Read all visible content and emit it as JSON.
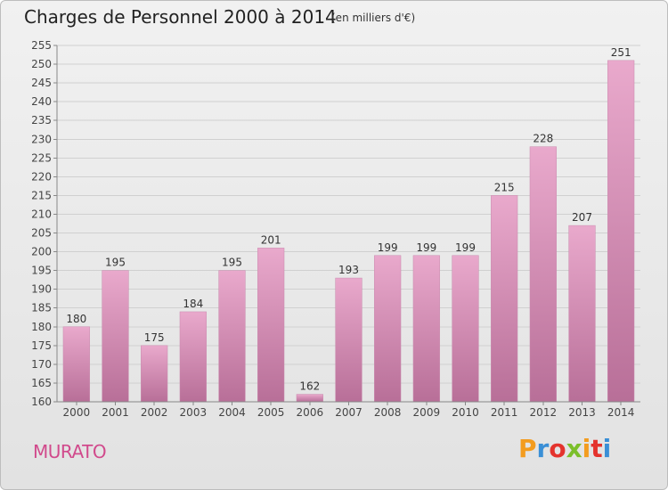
{
  "title": "Charges de Personnel 2000 à 2014",
  "subtitle": "(en milliers d'€)",
  "commune": "MURATO",
  "logo": {
    "text": "Proxiti",
    "colors": [
      "#f39c1f",
      "#3a8fd6",
      "#e4332d",
      "#7bbf2a",
      "#f39c1f",
      "#e4332d",
      "#3a8fd6"
    ]
  },
  "colors": {
    "bar_light": "#e9a9cc",
    "bar_dark": "#b86f98",
    "background": "#e8e8e8",
    "commune": "#d14a8c"
  },
  "chart_data": {
    "type": "bar",
    "title": "Charges de Personnel 2000 à 2014",
    "subtitle": "(en milliers d'€)",
    "categories": [
      "2000",
      "2001",
      "2002",
      "2003",
      "2004",
      "2005",
      "2006",
      "2007",
      "2008",
      "2009",
      "2010",
      "2011",
      "2012",
      "2013",
      "2014"
    ],
    "values": [
      180,
      195,
      175,
      184,
      195,
      201,
      162,
      193,
      199,
      199,
      199,
      215,
      228,
      207,
      251
    ],
    "ylim": [
      160,
      255
    ],
    "yticks": [
      160,
      165,
      170,
      175,
      180,
      185,
      190,
      195,
      200,
      205,
      210,
      215,
      220,
      225,
      230,
      235,
      240,
      245,
      250,
      255
    ],
    "grid": true,
    "show_value_labels": true
  }
}
